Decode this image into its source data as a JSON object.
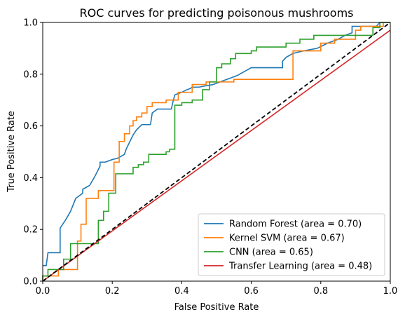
{
  "chart_data": {
    "type": "line",
    "title": "ROC curves for predicting poisonous mushrooms",
    "xlabel": "False Positive Rate",
    "ylabel": "True Positive Rate",
    "xlim": [
      0.0,
      1.0
    ],
    "ylim": [
      0.0,
      1.0
    ],
    "xticks": [
      "0.0",
      "0.2",
      "0.4",
      "0.6",
      "0.8",
      "1.0"
    ],
    "yticks": [
      "0.0",
      "0.2",
      "0.4",
      "0.6",
      "0.8",
      "1.0"
    ],
    "grid": false,
    "legend_position": "lower-right",
    "series": [
      {
        "name": "Random Forest (area = 0.70)",
        "color": "#1f77b4",
        "x": [
          0.0,
          0.01,
          0.015,
          0.02,
          0.03,
          0.04,
          0.05,
          0.05,
          0.065,
          0.08,
          0.095,
          0.105,
          0.115,
          0.115,
          0.135,
          0.15,
          0.165,
          0.165,
          0.18,
          0.2,
          0.215,
          0.235,
          0.24,
          0.26,
          0.27,
          0.285,
          0.29,
          0.31,
          0.315,
          0.33,
          0.37,
          0.375,
          0.38,
          0.4,
          0.415,
          0.425,
          0.43,
          0.45,
          0.47,
          0.49,
          0.5,
          0.52,
          0.54,
          0.56,
          0.58,
          0.6,
          0.63,
          0.66,
          0.69,
          0.69,
          0.7,
          0.72,
          0.75,
          0.79,
          0.82,
          0.85,
          0.87,
          0.89,
          0.89,
          0.94,
          0.945,
          0.96,
          0.97,
          1.0
        ],
        "y": [
          0.06,
          0.06,
          0.11,
          0.11,
          0.11,
          0.11,
          0.11,
          0.205,
          0.235,
          0.27,
          0.32,
          0.33,
          0.34,
          0.355,
          0.37,
          0.405,
          0.445,
          0.46,
          0.46,
          0.47,
          0.475,
          0.49,
          0.51,
          0.565,
          0.585,
          0.605,
          0.605,
          0.605,
          0.65,
          0.665,
          0.665,
          0.695,
          0.72,
          0.73,
          0.74,
          0.745,
          0.75,
          0.75,
          0.755,
          0.76,
          0.765,
          0.775,
          0.785,
          0.795,
          0.81,
          0.825,
          0.825,
          0.825,
          0.825,
          0.85,
          0.865,
          0.88,
          0.89,
          0.9,
          0.92,
          0.935,
          0.95,
          0.96,
          0.985,
          0.985,
          0.985,
          0.985,
          1.0,
          1.0
        ]
      },
      {
        "name": "Kernel SVM (area = 0.67)",
        "color": "#ff7f0e",
        "x": [
          0.0,
          0.0,
          0.045,
          0.045,
          0.1,
          0.1,
          0.11,
          0.11,
          0.125,
          0.125,
          0.16,
          0.16,
          0.205,
          0.205,
          0.22,
          0.22,
          0.235,
          0.235,
          0.25,
          0.25,
          0.26,
          0.26,
          0.27,
          0.27,
          0.285,
          0.285,
          0.3,
          0.3,
          0.315,
          0.315,
          0.355,
          0.355,
          0.39,
          0.39,
          0.43,
          0.43,
          0.47,
          0.47,
          0.55,
          0.55,
          0.72,
          0.72,
          0.775,
          0.775,
          0.8,
          0.8,
          0.84,
          0.84,
          0.9,
          0.9,
          0.915,
          0.915,
          0.96,
          0.96,
          0.98,
          0.98,
          1.0
        ],
        "y": [
          0.0,
          0.02,
          0.02,
          0.045,
          0.045,
          0.155,
          0.155,
          0.22,
          0.22,
          0.32,
          0.32,
          0.35,
          0.35,
          0.46,
          0.46,
          0.54,
          0.54,
          0.57,
          0.57,
          0.6,
          0.6,
          0.62,
          0.62,
          0.635,
          0.635,
          0.65,
          0.65,
          0.675,
          0.675,
          0.69,
          0.69,
          0.7,
          0.7,
          0.73,
          0.73,
          0.76,
          0.76,
          0.77,
          0.77,
          0.78,
          0.78,
          0.89,
          0.89,
          0.89,
          0.89,
          0.92,
          0.92,
          0.935,
          0.935,
          0.97,
          0.97,
          0.985,
          0.985,
          0.985,
          0.985,
          1.0,
          1.0
        ]
      },
      {
        "name": "CNN (area = 0.65)",
        "color": "#2ca02c",
        "x": [
          0.0,
          0.0,
          0.015,
          0.015,
          0.06,
          0.06,
          0.08,
          0.08,
          0.105,
          0.105,
          0.16,
          0.16,
          0.175,
          0.175,
          0.19,
          0.19,
          0.21,
          0.21,
          0.26,
          0.26,
          0.275,
          0.275,
          0.29,
          0.29,
          0.305,
          0.305,
          0.355,
          0.355,
          0.365,
          0.365,
          0.38,
          0.38,
          0.4,
          0.4,
          0.43,
          0.43,
          0.46,
          0.46,
          0.48,
          0.48,
          0.5,
          0.5,
          0.515,
          0.515,
          0.54,
          0.54,
          0.555,
          0.555,
          0.6,
          0.6,
          0.615,
          0.615,
          0.64,
          0.64,
          0.7,
          0.7,
          0.74,
          0.74,
          0.78,
          0.78,
          0.83,
          0.83,
          0.95,
          0.95,
          0.97,
          0.97,
          1.0
        ],
        "y": [
          0.0,
          0.02,
          0.02,
          0.045,
          0.045,
          0.085,
          0.085,
          0.145,
          0.145,
          0.145,
          0.145,
          0.235,
          0.235,
          0.27,
          0.27,
          0.34,
          0.34,
          0.415,
          0.415,
          0.44,
          0.44,
          0.45,
          0.45,
          0.46,
          0.46,
          0.49,
          0.49,
          0.5,
          0.5,
          0.51,
          0.51,
          0.68,
          0.68,
          0.69,
          0.69,
          0.7,
          0.7,
          0.74,
          0.74,
          0.77,
          0.77,
          0.825,
          0.825,
          0.84,
          0.84,
          0.86,
          0.86,
          0.88,
          0.88,
          0.89,
          0.89,
          0.905,
          0.905,
          0.905,
          0.905,
          0.92,
          0.92,
          0.935,
          0.935,
          0.95,
          0.95,
          0.95,
          0.95,
          0.98,
          0.98,
          1.0,
          1.0
        ]
      },
      {
        "name": "Transfer Learning (area = 0.48)",
        "color": "#d62728",
        "x": [
          0.0,
          1.0
        ],
        "y": [
          0.0,
          0.97
        ]
      }
    ],
    "reference_line": {
      "x": [
        0.0,
        1.0
      ],
      "y": [
        0.0,
        1.0
      ],
      "color": "#000000",
      "style": "dashed"
    }
  }
}
